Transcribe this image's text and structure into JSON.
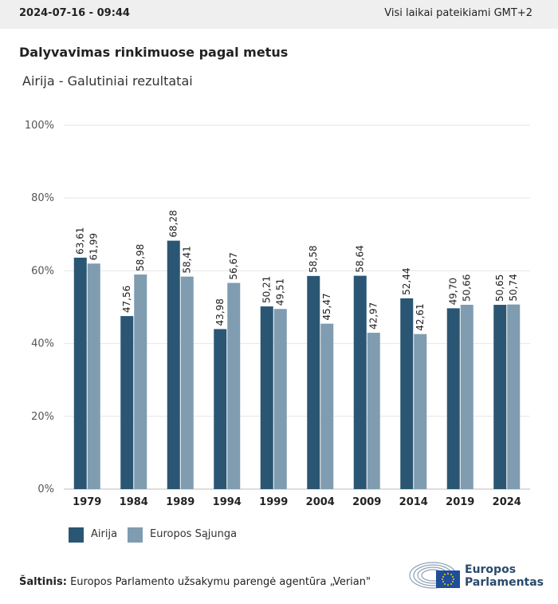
{
  "header": {
    "date": "2024-07-16 - 09:44",
    "timezone_note": "Visi laikai pateikiami GMT+2"
  },
  "title": "Dalyvavimas rinkimuose pagal metus",
  "subtitle": "Airija - Galutiniai rezultatai",
  "chart_data": {
    "type": "bar",
    "categories": [
      "1979",
      "1984",
      "1989",
      "1994",
      "1999",
      "2004",
      "2009",
      "2014",
      "2019",
      "2024"
    ],
    "series": [
      {
        "name": "Airija",
        "color": "#2a5674",
        "values": [
          63.61,
          47.56,
          68.28,
          43.98,
          50.21,
          58.58,
          58.64,
          52.44,
          49.7,
          50.65
        ],
        "labels": [
          "63,61",
          "47,56",
          "68,28",
          "43,98",
          "50,21",
          "58,58",
          "58,64",
          "52,44",
          "49,70",
          "50,65"
        ]
      },
      {
        "name": "Europos Sąjunga",
        "color": "#7f9cb0",
        "values": [
          61.99,
          58.98,
          58.41,
          56.67,
          49.51,
          45.47,
          42.97,
          42.61,
          50.66,
          50.74
        ],
        "labels": [
          "61,99",
          "58,98",
          "58,41",
          "56,67",
          "49,51",
          "45,47",
          "42,97",
          "42,61",
          "50,66",
          "50,74"
        ]
      }
    ],
    "yticks": [
      "0%",
      "20%",
      "40%",
      "60%",
      "80%",
      "100%"
    ],
    "ylim": [
      0,
      100
    ],
    "grid": true,
    "legend_position": "bottom-left"
  },
  "legend": [
    {
      "label": "Airija",
      "color": "#2a5674"
    },
    {
      "label": "Europos Sąjunga",
      "color": "#7f9cb0"
    }
  ],
  "source": {
    "label": "Šaltinis:",
    "text": "Europos Parlamento užsakymu parengė agentūra „Verian\""
  },
  "logo": {
    "line1": "Europos",
    "line2": "Parlamentas"
  }
}
